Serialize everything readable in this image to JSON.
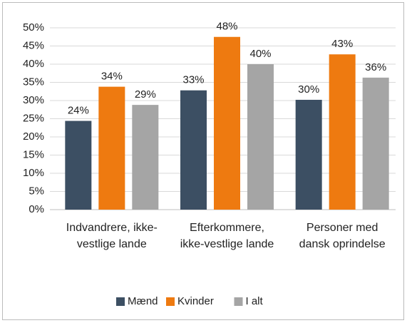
{
  "chart_data": {
    "type": "bar",
    "categories": [
      "Indvandrere, ikke-vestlige lande",
      "Efterkommere, ikke-vestlige lande",
      "Personer med dansk oprindelse"
    ],
    "series": [
      {
        "name": "Mænd",
        "color": "#3c4f63",
        "values": [
          24.4,
          32.8,
          30.2
        ],
        "value_labels": [
          "24%",
          "33%",
          "30%"
        ]
      },
      {
        "name": "Kvinder",
        "color": "#ee7a10",
        "values": [
          33.8,
          47.5,
          42.7
        ],
        "value_labels": [
          "34%",
          "48%",
          "43%"
        ]
      },
      {
        "name": "I alt",
        "color": "#a5a5a5",
        "values": [
          28.8,
          40.0,
          36.3
        ],
        "value_labels": [
          "29%",
          "40%",
          "36%"
        ]
      }
    ],
    "ylim": [
      0,
      50
    ],
    "yticks": [
      {
        "value": 0,
        "label": "0%"
      },
      {
        "value": 5,
        "label": "5%"
      },
      {
        "value": 10,
        "label": "10%"
      },
      {
        "value": 15,
        "label": "15%"
      },
      {
        "value": 20,
        "label": "20%"
      },
      {
        "value": 25,
        "label": "25%"
      },
      {
        "value": 30,
        "label": "30%"
      },
      {
        "value": 35,
        "label": "35%"
      },
      {
        "value": 40,
        "label": "40%"
      },
      {
        "value": 45,
        "label": "45%"
      },
      {
        "value": 50,
        "label": "50%"
      }
    ],
    "grid": true,
    "legend": "bottom"
  }
}
